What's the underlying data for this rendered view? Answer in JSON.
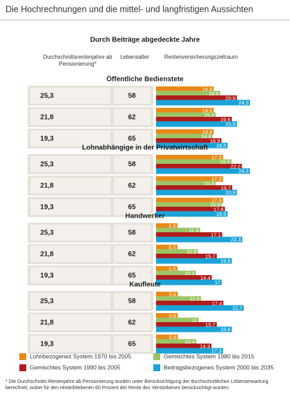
{
  "header": {
    "title": "Die Hochrechnungen und die mittel- und langfristigen Aussichten"
  },
  "chart_data": {
    "type": "bar",
    "title": "Durch Beiträge abgedeckte Jahre",
    "columns": [
      "Durchschnittsrentenjahre ab Pensionierung*",
      "Lebensalter",
      "Rentenversicherungszeitraum"
    ],
    "series": [
      {
        "name": "Lohnbezogenes System 1970 bis 2005",
        "color": "#e8891a"
      },
      {
        "name": "Gemischtes System 1980 bis 2015",
        "color": "#9cc466"
      },
      {
        "name": "Gemischtes System 1990 bis 2005",
        "color": "#b01c1c"
      },
      {
        "name": "Beitragsbezogenes System 2000 bis 2035",
        "color": "#1ba3d8"
      }
    ],
    "groups": [
      {
        "name": "Öffentliche Bedienstete",
        "rows": [
          {
            "years": "25,3",
            "age": 58,
            "values": [
              14.9,
              16.6,
              20.9,
              24.3
            ],
            "value_labels": [
              "14,9",
              "16,6",
              "20,9",
              "24,3"
            ]
          },
          {
            "years": "21,8",
            "age": 62,
            "values": [
              14.9,
              15.4,
              19.6,
              20.9
            ],
            "value_labels": [
              "14,9",
              "15,4",
              "19,6",
              "20,9"
            ]
          },
          {
            "years": "19,3",
            "age": 65,
            "values": [
              14.9,
              14.6,
              16.9,
              18.5
            ],
            "value_labels": [
              "14,9",
              "14,6",
              "16,9",
              "18,5"
            ]
          }
        ]
      },
      {
        "name": "Lohnabhängige in der Privatwirtschaft",
        "rows": [
          {
            "years": "25,3",
            "age": 58,
            "values": [
              17.3,
              19.5,
              22.2,
              24.3
            ],
            "value_labels": [
              "17,3",
              "19,5",
              "22,2",
              "24,3"
            ]
          },
          {
            "years": "21,8",
            "age": 62,
            "values": [
              17.3,
              15.4,
              19.7,
              20.9
            ],
            "value_labels": [
              "17,3",
              "15,4",
              "19,7",
              "20,9"
            ]
          },
          {
            "years": "19,3",
            "age": 65,
            "values": [
              17.3,
              16.9,
              17.8,
              18.5
            ],
            "value_labels": [
              "17,3",
              "16,9",
              "17,8",
              "18,5"
            ]
          }
        ]
      },
      {
        "name": "Handwerker",
        "rows": [
          {
            "years": "25,3",
            "age": 58,
            "values": [
              5.5,
              11.4,
              17.1,
              22.3
            ],
            "value_labels": [
              "5,5",
              "11,4",
              "17,1",
              "22,3"
            ]
          },
          {
            "years": "21,8",
            "age": 62,
            "values": [
              5.5,
              10.8,
              15.7,
              19.6
            ],
            "value_labels": [
              "5,5",
              "10,8",
              "15,7",
              "19,6"
            ]
          },
          {
            "years": "19,3",
            "age": 65,
            "values": [
              5.5,
              10.3,
              14.4,
              17
            ],
            "value_labels": [
              "5,5",
              "10,3",
              "14,4",
              "17"
            ]
          }
        ]
      },
      {
        "name": "Kaufleute",
        "rows": [
          {
            "years": "25,3",
            "age": 58,
            "values": [
              5.6,
              11.6,
              17.4,
              22.7
            ],
            "value_labels": [
              "5,6",
              "11,6",
              "17,4",
              "22,7"
            ]
          },
          {
            "years": "21,8",
            "age": 62,
            "values": [
              5.6,
              11,
              15.7,
              19.6
            ],
            "value_labels": [
              "5,6",
              "11",
              "15,7",
              "19,6"
            ]
          },
          {
            "years": "19,3",
            "age": 65,
            "values": [
              5.6,
              10.4,
              14.3,
              17.3
            ],
            "value_labels": [
              "5,6",
              "10,4",
              "14,3",
              "17,3"
            ]
          }
        ]
      }
    ]
  },
  "footnote": "* Die Durchschnitts-Rentenjahre ab Pensionierung wurden unter Berücksichtigung der durchschnittlichen Lebenserwartung berechnet, wobei für den Hinterbliebenen 60 Prozent der Rente des Verstorbenen berücksichtigt wurden."
}
